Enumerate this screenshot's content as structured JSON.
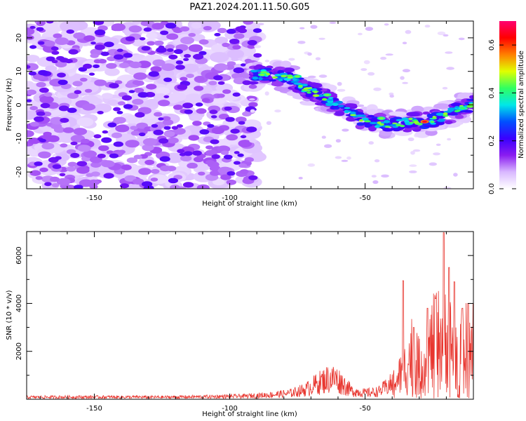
{
  "title": "PAZ1.2024.201.11.50.G05",
  "chart_data": [
    {
      "type": "heatmap",
      "xlabel": "Height of straight line (km)",
      "ylabel": "Frequency (Hz)",
      "xlim": [
        -175,
        -10
      ],
      "ylim": [
        -25,
        25
      ],
      "x_ticks": [
        -150,
        -100,
        -50
      ],
      "x_tick_labels": [
        "-150",
        "-100",
        "-50"
      ],
      "y_ticks": [
        -20,
        -10,
        0,
        10,
        20
      ],
      "y_tick_labels": [
        "-20",
        "-10",
        "0",
        "10",
        "20"
      ],
      "colorbar": {
        "label": "Normalized spectral amplitude",
        "range": [
          0,
          0.7
        ],
        "ticks": [
          0,
          0.2,
          0.4,
          0.6
        ],
        "tick_labels": [
          "0.0",
          "0.2",
          "0.4",
          "0.6"
        ],
        "colors": [
          "#ffffff",
          "#d9b8ff",
          "#8a1cf0",
          "#3a00ff",
          "#0050ff",
          "#00e8e8",
          "#30ff60",
          "#e0ff00",
          "#ff8000",
          "#ff0000",
          "#ff0070"
        ]
      },
      "features": [
        {
          "kind": "noise",
          "x_range": [
            -175,
            -92
          ],
          "y_range": [
            -25,
            25
          ],
          "level": 0.15
        },
        {
          "kind": "ridge",
          "points": [
            [
              -92,
              9
            ],
            [
              -85,
              9
            ],
            [
              -78,
              8
            ],
            [
              -72,
              5
            ],
            [
              -65,
              2
            ],
            [
              -58,
              -1
            ],
            [
              -52,
              -4
            ],
            [
              -47,
              -5
            ],
            [
              -40,
              -6
            ],
            [
              -33,
              -5
            ],
            [
              -28,
              -5
            ],
            [
              -22,
              -4
            ],
            [
              -15,
              -1
            ],
            [
              -10,
              0
            ]
          ],
          "level": 0.55
        }
      ],
      "grid": false
    },
    {
      "type": "line",
      "xlabel": "Height of straight line (km)",
      "ylabel": "SNR (10 * v/v)",
      "xlim": [
        -175,
        -10
      ],
      "ylim": [
        0,
        7000
      ],
      "x_ticks": [
        -150,
        -100,
        -50
      ],
      "x_tick_labels": [
        "-150",
        "-100",
        "-50"
      ],
      "y_ticks": [
        2000,
        4000,
        6000
      ],
      "y_tick_labels": [
        "2000",
        "4000",
        "6000"
      ],
      "color": "#e8362f",
      "envelope": [
        [
          -175,
          150
        ],
        [
          -150,
          160
        ],
        [
          -125,
          150
        ],
        [
          -110,
          180
        ],
        [
          -95,
          220
        ],
        [
          -85,
          320
        ],
        [
          -78,
          420
        ],
        [
          -72,
          700
        ],
        [
          -68,
          1100
        ],
        [
          -64,
          1450
        ],
        [
          -61,
          1500
        ],
        [
          -58,
          1100
        ],
        [
          -55,
          600
        ],
        [
          -50,
          450
        ],
        [
          -45,
          550
        ],
        [
          -42,
          900
        ],
        [
          -38,
          1400
        ],
        [
          -35,
          2200
        ],
        [
          -32,
          3500
        ],
        [
          -30,
          2200
        ],
        [
          -27,
          2800
        ],
        [
          -25,
          3800
        ],
        [
          -22,
          4200
        ],
        [
          -20,
          4500
        ],
        [
          -18,
          3600
        ],
        [
          -16,
          3200
        ],
        [
          -14,
          3300
        ],
        [
          -12,
          3700
        ],
        [
          -10,
          3600
        ]
      ],
      "peaks": [
        [
          -36,
          4950
        ],
        [
          -32,
          3000
        ],
        [
          -27,
          3800
        ],
        [
          -24,
          4200
        ],
        [
          -21,
          6950
        ],
        [
          -19,
          5500
        ],
        [
          -17,
          4900
        ],
        [
          -14,
          3800
        ],
        [
          -12,
          4000
        ],
        [
          -10,
          4000
        ]
      ],
      "grid": false
    }
  ]
}
